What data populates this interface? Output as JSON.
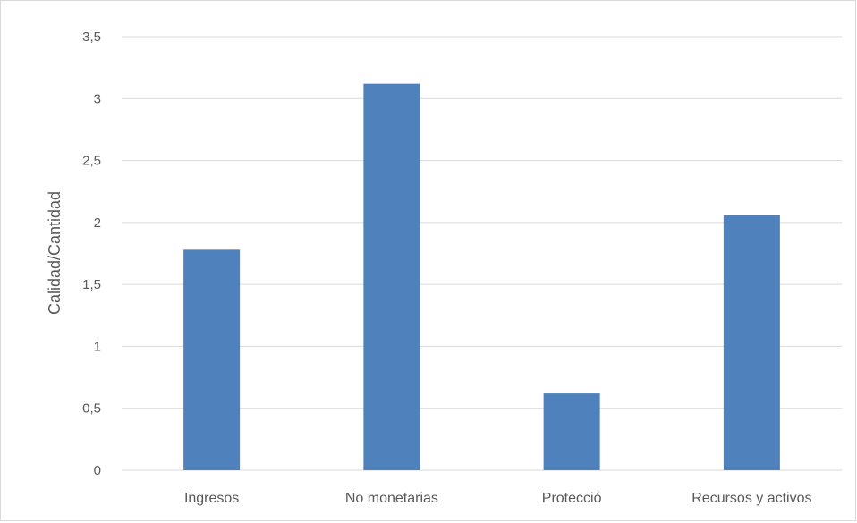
{
  "chart_data": {
    "type": "bar",
    "title": "",
    "xlabel": "",
    "ylabel": "Calidad/Cantidad",
    "categories": [
      "Ingresos",
      "No monetarias",
      "Protecció",
      "Recursos y activos"
    ],
    "values": [
      1.78,
      3.12,
      0.62,
      2.06
    ],
    "ylim": [
      0,
      3.5
    ],
    "yticks": [
      "0",
      "0,5",
      "1",
      "1,5",
      "2",
      "2,5",
      "3",
      "3,5"
    ],
    "grid": true,
    "legend": "none",
    "colors": {
      "bar": "#4f81bd",
      "grid": "#d9d9d9",
      "text": "#595959"
    }
  }
}
